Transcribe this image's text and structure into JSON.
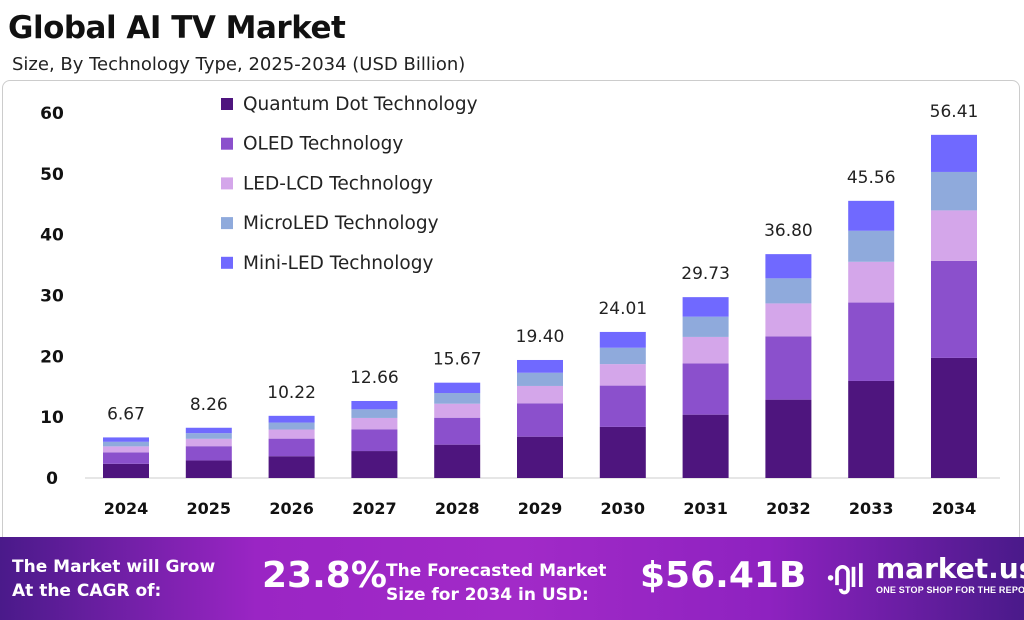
{
  "header": {
    "title": "Global AI TV Market",
    "subtitle": "Size, By Technology Type, 2025-2034 (USD Billion)"
  },
  "chart_data": {
    "type": "bar",
    "stacked": true,
    "title": "Global AI TV Market",
    "subtitle": "Size, By Technology Type, 2025-2034 (USD Billion)",
    "categories": [
      "2024",
      "2025",
      "2026",
      "2027",
      "2028",
      "2029",
      "2030",
      "2031",
      "2032",
      "2033",
      "2034"
    ],
    "totals": [
      "6.67",
      "8.26",
      "10.22",
      "12.66",
      "15.67",
      "19.40",
      "24.01",
      "29.73",
      "36.80",
      "45.56",
      "56.41"
    ],
    "series": [
      {
        "name": "Quantum Dot Technology",
        "color": "#4e157e",
        "values": [
          2.33,
          2.89,
          3.58,
          4.43,
          5.48,
          6.79,
          8.4,
          10.41,
          12.88,
          15.95,
          19.74
        ]
      },
      {
        "name": "OLED Technology",
        "color": "#8b50cc",
        "values": [
          1.89,
          2.34,
          2.89,
          3.58,
          4.43,
          5.49,
          6.79,
          8.41,
          10.41,
          12.89,
          15.96
        ]
      },
      {
        "name": "LED-LCD Technology",
        "color": "#d4a6ea",
        "values": [
          0.98,
          1.21,
          1.5,
          1.86,
          2.3,
          2.85,
          3.53,
          4.37,
          5.41,
          6.7,
          8.29
        ]
      },
      {
        "name": "MicroLED Technology",
        "color": "#8faadc",
        "values": [
          0.75,
          0.93,
          1.14,
          1.42,
          1.76,
          2.17,
          2.69,
          3.33,
          4.12,
          5.1,
          6.32
        ]
      },
      {
        "name": "Mini-LED Technology",
        "color": "#7069ff",
        "values": [
          0.72,
          0.89,
          1.11,
          1.37,
          1.7,
          2.1,
          2.6,
          3.21,
          3.98,
          4.92,
          6.1
        ]
      }
    ],
    "yticks": [
      "0",
      "10",
      "20",
      "30",
      "40",
      "50",
      "60"
    ],
    "ylim": [
      0,
      60
    ],
    "grid": false,
    "legend_position": "top-left"
  },
  "footer": {
    "cagr_label": "The Market will Grow At the CAGR of:",
    "cagr_label_1": "The Market will Grow",
    "cagr_label_2": "At the CAGR of:",
    "cagr_value": "23.8%",
    "forecast_label_1": "The Forecasted Market",
    "forecast_label_2": "Size for 2034 in USD:",
    "forecast_value": "$56.41B",
    "logo": "market.us",
    "logo_tagline": "ONE STOP SHOP FOR THE REPORTS"
  }
}
